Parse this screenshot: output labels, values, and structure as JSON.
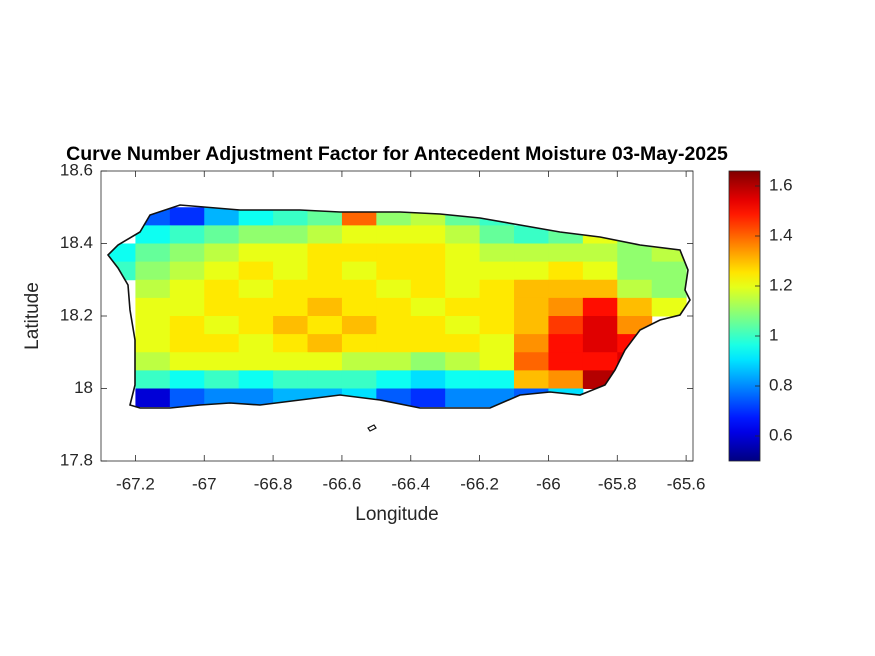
{
  "chart_data": {
    "type": "heatmap",
    "title": "Curve Number Adjustment Factor for Antecedent Moisture 03-May-2025",
    "x_label": "Longitude",
    "y_label": "Latitude",
    "xlim": [
      -67.3,
      -65.58
    ],
    "ylim": [
      17.8,
      18.6
    ],
    "xticks": [
      -67.2,
      -67,
      -66.8,
      -66.6,
      -66.4,
      -66.2,
      -66,
      -65.8,
      -65.6
    ],
    "yticks": [
      17.8,
      18,
      18.2,
      18.4,
      18.6
    ],
    "colormap": "jet",
    "clim": [
      0.5,
      1.66
    ],
    "colorbar_ticks": [
      0.6,
      0.8,
      1,
      1.2,
      1.4,
      1.6
    ],
    "x": [
      -67.25,
      -67.15,
      -67.05,
      -66.95,
      -66.85,
      -66.75,
      -66.65,
      -66.55,
      -66.45,
      -66.35,
      -66.25,
      -66.15,
      -66.05,
      -65.95,
      -65.85,
      -65.75,
      -65.65
    ],
    "y": [
      18.475,
      18.425,
      18.375,
      18.325,
      18.275,
      18.225,
      18.175,
      18.125,
      18.075,
      18.025,
      17.975
    ],
    "z": [
      [
        null,
        0.75,
        0.7,
        0.85,
        0.95,
        1.0,
        1.05,
        1.4,
        1.1,
        1.15,
        1.05,
        1.0,
        null,
        null,
        null,
        null,
        null
      ],
      [
        null,
        0.95,
        1.0,
        1.05,
        1.1,
        1.1,
        1.15,
        1.2,
        1.2,
        1.2,
        1.15,
        1.05,
        1.0,
        1.05,
        1.2,
        1.1,
        null
      ],
      [
        0.95,
        1.05,
        1.1,
        1.15,
        1.2,
        1.2,
        1.25,
        1.25,
        1.25,
        1.25,
        1.2,
        1.15,
        1.15,
        1.15,
        1.15,
        1.1,
        1.15
      ],
      [
        1.0,
        1.1,
        1.15,
        1.2,
        1.25,
        1.2,
        1.25,
        1.2,
        1.25,
        1.25,
        1.2,
        1.2,
        1.2,
        1.25,
        1.2,
        1.1,
        1.1
      ],
      [
        null,
        1.15,
        1.2,
        1.25,
        1.2,
        1.25,
        1.25,
        1.25,
        1.2,
        1.25,
        1.2,
        1.25,
        1.3,
        1.3,
        1.3,
        1.15,
        1.1
      ],
      [
        null,
        1.2,
        1.2,
        1.25,
        1.25,
        1.25,
        1.3,
        1.25,
        1.25,
        1.2,
        1.25,
        1.25,
        1.3,
        1.35,
        1.5,
        1.3,
        1.2
      ],
      [
        null,
        1.2,
        1.25,
        1.2,
        1.25,
        1.3,
        1.25,
        1.3,
        1.25,
        1.25,
        1.2,
        1.25,
        1.3,
        1.45,
        1.55,
        1.35,
        null
      ],
      [
        null,
        1.2,
        1.25,
        1.25,
        1.2,
        1.25,
        1.3,
        1.25,
        1.25,
        1.25,
        1.25,
        1.2,
        1.35,
        1.5,
        1.55,
        1.5,
        null
      ],
      [
        null,
        1.15,
        1.2,
        1.2,
        1.2,
        1.2,
        1.2,
        1.15,
        1.15,
        1.1,
        1.15,
        1.2,
        1.4,
        1.5,
        1.5,
        1.55,
        null
      ],
      [
        null,
        1.0,
        0.95,
        1.0,
        0.95,
        1.0,
        1.0,
        1.0,
        0.95,
        0.9,
        0.95,
        0.95,
        1.3,
        1.35,
        1.6,
        null,
        null
      ],
      [
        null,
        0.6,
        0.75,
        0.8,
        0.8,
        0.85,
        0.85,
        0.9,
        0.75,
        0.7,
        0.8,
        0.8,
        0.75,
        0.9,
        null,
        null,
        null
      ]
    ]
  }
}
